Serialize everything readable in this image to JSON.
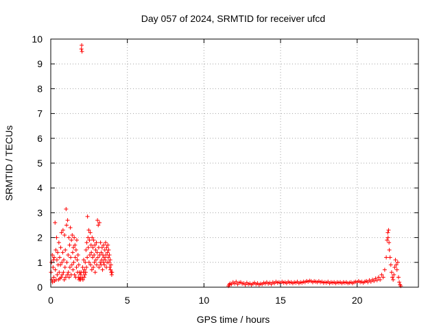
{
  "chart_data": {
    "type": "scatter",
    "title": "Day 057 of 2024, SRMTID for receiver ufcd",
    "xlabel": "GPS time / hours",
    "ylabel": "SRMTID / TECUs",
    "xlim": [
      0,
      24
    ],
    "ylim": [
      0,
      10
    ],
    "xticks": [
      0,
      5,
      10,
      15,
      20
    ],
    "yticks": [
      0,
      1,
      2,
      3,
      4,
      5,
      6,
      7,
      8,
      9,
      10
    ],
    "grid": true,
    "marker": "+",
    "color": "#ff0000",
    "series": [
      {
        "name": "SRMTID",
        "points": [
          [
            0.02,
            0.6
          ],
          [
            0.05,
            1.0
          ],
          [
            0.08,
            0.3
          ],
          [
            0.1,
            1.3
          ],
          [
            0.12,
            0.2
          ],
          [
            0.15,
            0.8
          ],
          [
            0.18,
            1.1
          ],
          [
            0.2,
            0.4
          ],
          [
            0.22,
            1.2
          ],
          [
            0.25,
            0.25
          ],
          [
            0.28,
            2.6
          ],
          [
            0.3,
            0.7
          ],
          [
            0.33,
            1.5
          ],
          [
            0.35,
            0.3
          ],
          [
            0.38,
            2.0
          ],
          [
            0.4,
            1.1
          ],
          [
            0.42,
            0.5
          ],
          [
            0.45,
            1.4
          ],
          [
            0.48,
            0.9
          ],
          [
            0.5,
            0.3
          ],
          [
            0.53,
            1.8
          ],
          [
            0.55,
            0.6
          ],
          [
            0.58,
            1.2
          ],
          [
            0.6,
            0.35
          ],
          [
            0.63,
            0.9
          ],
          [
            0.65,
            1.6
          ],
          [
            0.68,
            0.4
          ],
          [
            0.7,
            2.2
          ],
          [
            0.73,
            1.0
          ],
          [
            0.75,
            0.5
          ],
          [
            0.78,
            1.4
          ],
          [
            0.8,
            2.3
          ],
          [
            0.83,
            0.6
          ],
          [
            0.85,
            1.1
          ],
          [
            0.88,
            0.3
          ],
          [
            0.9,
            2.1
          ],
          [
            0.93,
            0.8
          ],
          [
            0.95,
            1.5
          ],
          [
            0.98,
            0.4
          ],
          [
            1.0,
            3.15
          ],
          [
            1.03,
            2.5
          ],
          [
            1.05,
            1.0
          ],
          [
            1.08,
            0.5
          ],
          [
            1.1,
            2.7
          ],
          [
            1.13,
            1.3
          ],
          [
            1.15,
            0.6
          ],
          [
            1.18,
            2.0
          ],
          [
            1.2,
            0.4
          ],
          [
            1.23,
            1.7
          ],
          [
            1.25,
            0.8
          ],
          [
            1.28,
            2.4
          ],
          [
            1.3,
            1.2
          ],
          [
            1.33,
            0.5
          ],
          [
            1.35,
            1.9
          ],
          [
            1.38,
            0.9
          ],
          [
            1.4,
            2.1
          ],
          [
            1.43,
            1.4
          ],
          [
            1.45,
            0.7
          ],
          [
            1.48,
            1.6
          ],
          [
            1.5,
            1.0
          ],
          [
            1.53,
            2.0
          ],
          [
            1.55,
            0.5
          ],
          [
            1.58,
            1.7
          ],
          [
            1.6,
            1.2
          ],
          [
            1.63,
            0.4
          ],
          [
            1.65,
            1.5
          ],
          [
            1.68,
            0.8
          ],
          [
            1.7,
            1.9
          ],
          [
            1.73,
            1.1
          ],
          [
            1.75,
            0.6
          ],
          [
            1.78,
            1.3
          ],
          [
            1.8,
            0.4
          ],
          [
            1.83,
            0.9
          ],
          [
            1.85,
            0.3
          ],
          [
            1.88,
            0.6
          ],
          [
            1.9,
            0.35
          ],
          [
            1.93,
            0.5
          ],
          [
            1.95,
            0.3
          ],
          [
            1.98,
            0.6
          ],
          [
            2.0,
            9.6
          ],
          [
            2.02,
            9.75
          ],
          [
            2.04,
            9.5
          ],
          [
            2.05,
            0.4
          ],
          [
            2.08,
            0.8
          ],
          [
            2.1,
            0.3
          ],
          [
            2.13,
            0.6
          ],
          [
            2.15,
            1.1
          ],
          [
            2.18,
            0.4
          ],
          [
            2.2,
            0.7
          ],
          [
            2.23,
            0.5
          ],
          [
            2.25,
            1.0
          ],
          [
            2.28,
            0.6
          ],
          [
            2.3,
            1.5
          ],
          [
            2.33,
            0.8
          ],
          [
            2.35,
            1.8
          ],
          [
            2.38,
            1.2
          ],
          [
            2.4,
            2.85
          ],
          [
            2.43,
            2.0
          ],
          [
            2.45,
            1.6
          ],
          [
            2.48,
            2.3
          ],
          [
            2.5,
            1.0
          ],
          [
            2.53,
            1.9
          ],
          [
            2.55,
            1.3
          ],
          [
            2.58,
            2.2
          ],
          [
            2.6,
            0.9
          ],
          [
            2.63,
            1.7
          ],
          [
            2.65,
            1.4
          ],
          [
            2.68,
            0.7
          ],
          [
            2.7,
            2.0
          ],
          [
            2.73,
            1.2
          ],
          [
            2.75,
            1.6
          ],
          [
            2.78,
            0.8
          ],
          [
            2.8,
            1.9
          ],
          [
            2.83,
            1.3
          ],
          [
            2.85,
            1.0
          ],
          [
            2.88,
            1.7
          ],
          [
            2.9,
            0.6
          ],
          [
            2.93,
            1.5
          ],
          [
            2.95,
            1.1
          ],
          [
            2.98,
            1.8
          ],
          [
            3.0,
            0.9
          ],
          [
            3.03,
            1.4
          ],
          [
            3.05,
            2.7
          ],
          [
            3.08,
            1.2
          ],
          [
            3.1,
            2.5
          ],
          [
            3.13,
            1.6
          ],
          [
            3.15,
            0.8
          ],
          [
            3.18,
            2.6
          ],
          [
            3.2,
            1.3
          ],
          [
            3.23,
            1.0
          ],
          [
            3.25,
            1.8
          ],
          [
            3.28,
            0.9
          ],
          [
            3.3,
            1.4
          ],
          [
            3.33,
            1.1
          ],
          [
            3.35,
            1.6
          ],
          [
            3.38,
            0.7
          ],
          [
            3.4,
            1.3
          ],
          [
            3.43,
            1.0
          ],
          [
            3.45,
            1.7
          ],
          [
            3.48,
            1.2
          ],
          [
            3.5,
            0.9
          ],
          [
            3.53,
            1.5
          ],
          [
            3.55,
            1.1
          ],
          [
            3.58,
            1.8
          ],
          [
            3.6,
            1.3
          ],
          [
            3.63,
            0.8
          ],
          [
            3.65,
            1.6
          ],
          [
            3.68,
            1.0
          ],
          [
            3.7,
            1.4
          ],
          [
            3.73,
            1.7
          ],
          [
            3.75,
            1.2
          ],
          [
            3.78,
            1.5
          ],
          [
            3.8,
            1.0
          ],
          [
            3.83,
            1.3
          ],
          [
            3.85,
            0.8
          ],
          [
            3.88,
            1.1
          ],
          [
            3.9,
            0.7
          ],
          [
            3.93,
            0.9
          ],
          [
            3.95,
            0.6
          ],
          [
            3.98,
            0.5
          ],
          [
            4.0,
            0.6
          ],
          [
            11.6,
            0.05
          ],
          [
            11.65,
            0.1
          ],
          [
            11.7,
            0.15
          ],
          [
            11.8,
            0.12
          ],
          [
            11.9,
            0.2
          ],
          [
            12.0,
            0.15
          ],
          [
            12.1,
            0.22
          ],
          [
            12.2,
            0.12
          ],
          [
            12.3,
            0.18
          ],
          [
            12.4,
            0.2
          ],
          [
            12.5,
            0.14
          ],
          [
            12.6,
            0.16
          ],
          [
            12.7,
            0.1
          ],
          [
            12.8,
            0.18
          ],
          [
            12.9,
            0.12
          ],
          [
            13.0,
            0.15
          ],
          [
            13.1,
            0.1
          ],
          [
            13.2,
            0.14
          ],
          [
            13.3,
            0.18
          ],
          [
            13.4,
            0.12
          ],
          [
            13.5,
            0.16
          ],
          [
            13.6,
            0.1
          ],
          [
            13.7,
            0.14
          ],
          [
            13.8,
            0.12
          ],
          [
            13.9,
            0.18
          ],
          [
            14.0,
            0.15
          ],
          [
            14.1,
            0.2
          ],
          [
            14.2,
            0.14
          ],
          [
            14.3,
            0.18
          ],
          [
            14.4,
            0.12
          ],
          [
            14.5,
            0.2
          ],
          [
            14.6,
            0.16
          ],
          [
            14.7,
            0.22
          ],
          [
            14.8,
            0.18
          ],
          [
            14.9,
            0.2
          ],
          [
            15.0,
            0.16
          ],
          [
            15.1,
            0.22
          ],
          [
            15.2,
            0.18
          ],
          [
            15.3,
            0.2
          ],
          [
            15.4,
            0.16
          ],
          [
            15.5,
            0.22
          ],
          [
            15.6,
            0.18
          ],
          [
            15.7,
            0.2
          ],
          [
            15.8,
            0.16
          ],
          [
            15.9,
            0.2
          ],
          [
            16.0,
            0.18
          ],
          [
            16.1,
            0.22
          ],
          [
            16.2,
            0.16
          ],
          [
            16.3,
            0.2
          ],
          [
            16.4,
            0.18
          ],
          [
            16.5,
            0.22
          ],
          [
            16.6,
            0.2
          ],
          [
            16.7,
            0.25
          ],
          [
            16.8,
            0.22
          ],
          [
            16.9,
            0.26
          ],
          [
            17.0,
            0.24
          ],
          [
            17.1,
            0.2
          ],
          [
            17.2,
            0.24
          ],
          [
            17.3,
            0.22
          ],
          [
            17.4,
            0.2
          ],
          [
            17.5,
            0.24
          ],
          [
            17.6,
            0.2
          ],
          [
            17.7,
            0.22
          ],
          [
            17.8,
            0.18
          ],
          [
            17.9,
            0.2
          ],
          [
            18.0,
            0.18
          ],
          [
            18.1,
            0.22
          ],
          [
            18.2,
            0.16
          ],
          [
            18.3,
            0.2
          ],
          [
            18.4,
            0.18
          ],
          [
            18.5,
            0.2
          ],
          [
            18.6,
            0.16
          ],
          [
            18.7,
            0.2
          ],
          [
            18.8,
            0.18
          ],
          [
            18.9,
            0.2
          ],
          [
            19.0,
            0.16
          ],
          [
            19.1,
            0.2
          ],
          [
            19.2,
            0.18
          ],
          [
            19.3,
            0.2
          ],
          [
            19.4,
            0.16
          ],
          [
            19.5,
            0.18
          ],
          [
            19.6,
            0.2
          ],
          [
            19.7,
            0.16
          ],
          [
            19.8,
            0.2
          ],
          [
            19.9,
            0.22
          ],
          [
            20.0,
            0.2
          ],
          [
            20.1,
            0.25
          ],
          [
            20.2,
            0.2
          ],
          [
            20.3,
            0.22
          ],
          [
            20.4,
            0.18
          ],
          [
            20.5,
            0.22
          ],
          [
            20.6,
            0.25
          ],
          [
            20.7,
            0.2
          ],
          [
            20.8,
            0.28
          ],
          [
            20.9,
            0.22
          ],
          [
            21.0,
            0.3
          ],
          [
            21.1,
            0.25
          ],
          [
            21.2,
            0.35
          ],
          [
            21.3,
            0.28
          ],
          [
            21.4,
            0.4
          ],
          [
            21.5,
            0.3
          ],
          [
            21.6,
            0.5
          ],
          [
            21.7,
            0.4
          ],
          [
            21.8,
            0.7
          ],
          [
            21.9,
            1.2
          ],
          [
            21.95,
            1.9
          ],
          [
            22.0,
            2.2
          ],
          [
            22.02,
            2.0
          ],
          [
            22.05,
            2.3
          ],
          [
            22.08,
            1.8
          ],
          [
            22.1,
            1.5
          ],
          [
            22.15,
            1.2
          ],
          [
            22.2,
            0.9
          ],
          [
            22.25,
            0.6
          ],
          [
            22.3,
            0.4
          ],
          [
            22.35,
            0.3
          ],
          [
            22.4,
            0.5
          ],
          [
            22.45,
            0.8
          ],
          [
            22.5,
            1.1
          ],
          [
            22.55,
            0.9
          ],
          [
            22.6,
            0.7
          ],
          [
            22.65,
            1.0
          ],
          [
            22.7,
            0.4
          ],
          [
            22.75,
            0.2
          ],
          [
            22.8,
            0.1
          ],
          [
            22.85,
            0.05
          ]
        ]
      }
    ]
  }
}
